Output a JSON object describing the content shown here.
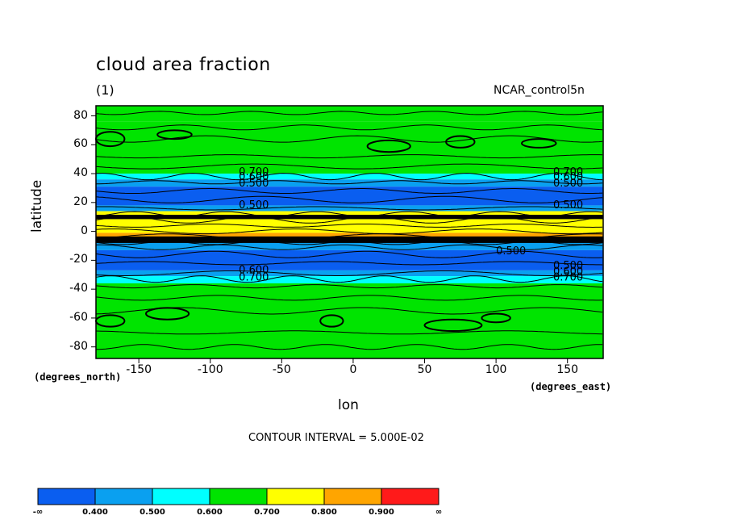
{
  "chart_data": {
    "type": "heatmap",
    "title": "cloud area fraction",
    "subtitle": "(1)",
    "dataset": "NCAR_control5n",
    "xlabel": "lon",
    "ylabel": "latitude",
    "x_units": "(degrees_east)",
    "y_units": "(degrees_north)",
    "xlim": [
      -180,
      175
    ],
    "ylim": [
      -88,
      87
    ],
    "x_ticks": [
      "-150",
      "-100",
      "-50",
      "0",
      "50",
      "100",
      "150"
    ],
    "y_ticks": [
      "80",
      "60",
      "40",
      "20",
      "0",
      "-20",
      "-40",
      "-60",
      "-80"
    ],
    "contour_interval_label": "CONTOUR INTERVAL = 5.000E-02",
    "contour_labels": [
      "0.700",
      "0.600",
      "0.500",
      "0.500",
      "0.500",
      "0.600",
      "0.700"
    ],
    "zonal_bands": [
      {
        "lat_min": 76,
        "lat_max": 87,
        "level": 0.7
      },
      {
        "lat_min": 40,
        "lat_max": 76,
        "level": 0.7
      },
      {
        "lat_min": 36,
        "lat_max": 40,
        "level": 0.6
      },
      {
        "lat_min": 31,
        "lat_max": 36,
        "level": 0.5
      },
      {
        "lat_min": 18,
        "lat_max": 31,
        "level": 0.4
      },
      {
        "lat_min": 14,
        "lat_max": 18,
        "level": 0.5
      },
      {
        "lat_min": 9,
        "lat_max": 14,
        "level": 0.8
      },
      {
        "lat_min": -1,
        "lat_max": 9,
        "level": 0.8
      },
      {
        "lat_min": -7,
        "lat_max": -1,
        "level": 0.9
      },
      {
        "lat_min": -13,
        "lat_max": -7,
        "level": 0.5
      },
      {
        "lat_min": -27,
        "lat_max": -13,
        "level": 0.4
      },
      {
        "lat_min": -31,
        "lat_max": -27,
        "level": 0.5
      },
      {
        "lat_min": -36,
        "lat_max": -31,
        "level": 0.6
      },
      {
        "lat_min": -88,
        "lat_max": -36,
        "level": 0.7
      }
    ],
    "colorbar": {
      "colors": [
        "#0a5ef0",
        "#0aa0f0",
        "#00ffff",
        "#00e400",
        "#ffff00",
        "#ffa500",
        "#ff1a1a"
      ],
      "labels": [
        "-∞",
        "0.400",
        "0.500",
        "0.600",
        "0.700",
        "0.800",
        "0.900",
        "∞"
      ]
    }
  }
}
